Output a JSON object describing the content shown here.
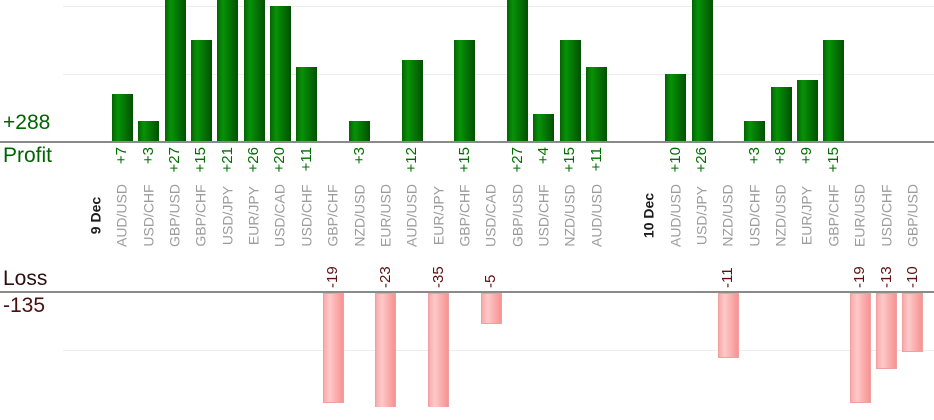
{
  "summary": {
    "profit_total": "+288",
    "profit_label": "Profit",
    "loss_label": "Loss",
    "loss_total": "-135"
  },
  "chart_data": {
    "type": "bar",
    "description_visible_text_only": "green bars above zero line labeled Profit, pink bars below zero line labeled Loss, grouped by day",
    "totals": {
      "profit": 288,
      "loss": -135
    },
    "days": [
      {
        "date": "9 Dec",
        "trades": [
          {
            "pair": "AUD/USD",
            "value": 7
          },
          {
            "pair": "USD/CHF",
            "value": 3
          },
          {
            "pair": "GBP/USD",
            "value": 27
          },
          {
            "pair": "GBP/CHF",
            "value": 15
          },
          {
            "pair": "USD/JPY",
            "value": 21
          },
          {
            "pair": "EUR/JPY",
            "value": 26
          },
          {
            "pair": "USD/CAD",
            "value": 20
          },
          {
            "pair": "USD/CHF",
            "value": 11
          },
          {
            "pair": "GBP/CHF",
            "value": -19
          },
          {
            "pair": "NZD/USD",
            "value": 3
          },
          {
            "pair": "EUR/USD",
            "value": -23
          },
          {
            "pair": "AUD/USD",
            "value": 12
          },
          {
            "pair": "EUR/JPY",
            "value": -35
          },
          {
            "pair": "GBP/CHF",
            "value": 15
          },
          {
            "pair": "USD/CAD",
            "value": -5
          },
          {
            "pair": "GBP/USD",
            "value": 27
          },
          {
            "pair": "USD/CHF",
            "value": 4
          },
          {
            "pair": "NZD/USD",
            "value": 15
          },
          {
            "pair": "AUD/USD",
            "value": 11
          }
        ]
      },
      {
        "date": "10 Dec",
        "trades": [
          {
            "pair": "AUD/USD",
            "value": 10
          },
          {
            "pair": "USD/JPY",
            "value": 26
          },
          {
            "pair": "NZD/USD",
            "value": -11
          },
          {
            "pair": "USD/CHF",
            "value": 3
          },
          {
            "pair": "NZD/USD",
            "value": 8
          },
          {
            "pair": "EUR/JPY",
            "value": 9
          },
          {
            "pair": "GBP/CHF",
            "value": 15
          },
          {
            "pair": "EUR/USD",
            "value": -19
          },
          {
            "pair": "USD/CHF",
            "value": -13
          },
          {
            "pair": "GBP/USD",
            "value": -10
          }
        ]
      }
    ],
    "axes": {
      "profit_gridline_interval": 10,
      "loss_gridline_interval": 10,
      "profit_visible_range": [
        0,
        21
      ],
      "loss_visible_range": [
        -20,
        0
      ],
      "grid": "on",
      "value_label_format_positive": "+N",
      "value_label_format_negative": "-N"
    },
    "colors": {
      "profit_bar_green": "#067306",
      "loss_bar_pink": "#ffb9b9",
      "profit_text_green": "#006e00",
      "loss_text_maroon": "#5c1212",
      "pair_label_gray": "#9c9c9c",
      "day_label_black": "#1c1c1c",
      "axis_line_gray": "#8a8a8a",
      "gridline_gray": "#ededed"
    }
  }
}
